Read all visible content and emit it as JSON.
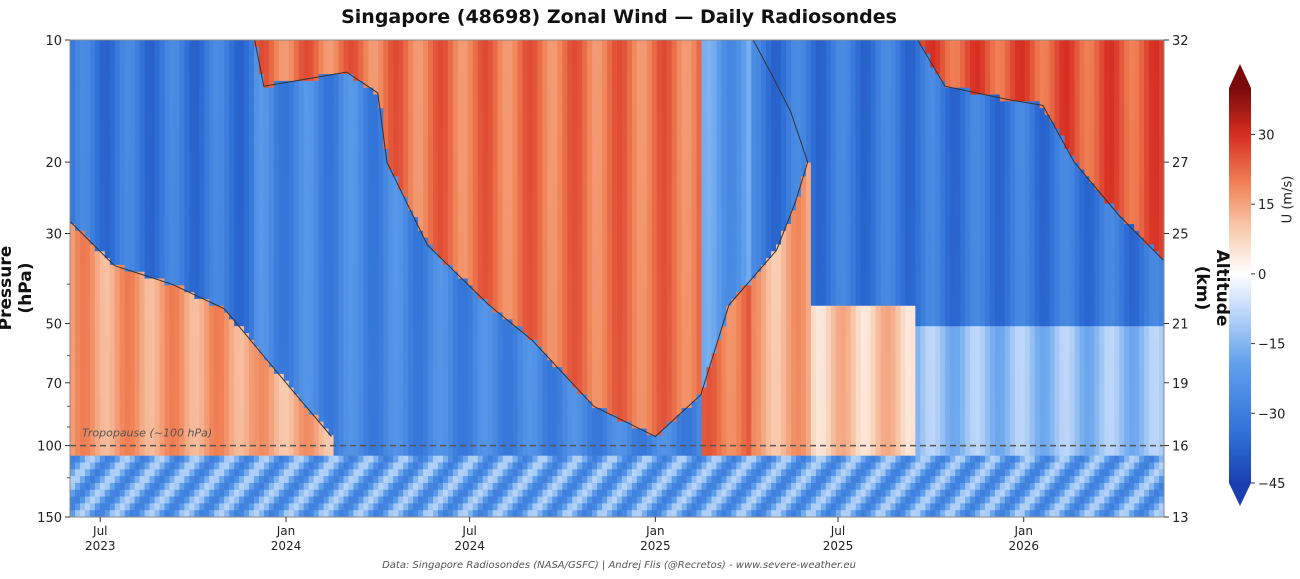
{
  "chart_data": {
    "type": "heatmap",
    "title": "Singapore (48698) Zonal Wind — Daily Radiosondes",
    "ylabel": "Pressure (hPa)",
    "y2label": "Altitude (km)",
    "colorbar_label": "U (m/s)",
    "credit": "Data: Singapore Radiosondes (NASA/GSFC) | Andrej Flis (@Recretos) - www.severe-weather.eu",
    "x_range": [
      "2023-06-01",
      "2026-05-20"
    ],
    "x_ticks": [
      {
        "date": "2023-07-01",
        "month": "Jul",
        "year": "2023"
      },
      {
        "date": "2024-01-01",
        "month": "Jan",
        "year": "2024"
      },
      {
        "date": "2024-07-01",
        "month": "Jul",
        "year": "2024"
      },
      {
        "date": "2025-01-01",
        "month": "Jan",
        "year": "2025"
      },
      {
        "date": "2025-07-01",
        "month": "Jul",
        "year": "2025"
      },
      {
        "date": "2026-01-01",
        "month": "Jan",
        "year": "2026"
      }
    ],
    "y_scale": "log",
    "y_range_hPa": [
      150,
      10
    ],
    "y_ticks_hPa": [
      10,
      20,
      30,
      50,
      70,
      100,
      150
    ],
    "y2_ticks_km": [
      {
        "p": 10,
        "km": "32"
      },
      {
        "p": 20,
        "km": "27"
      },
      {
        "p": 30,
        "km": "25"
      },
      {
        "p": 50,
        "km": "21"
      },
      {
        "p": 70,
        "km": "19"
      },
      {
        "p": 100,
        "km": "16"
      },
      {
        "p": 150,
        "km": "13"
      }
    ],
    "colorbar_range": [
      -45,
      40
    ],
    "colorbar_ticks": [
      30,
      15,
      0,
      -15,
      -30,
      -45
    ],
    "tropopause": {
      "p_hPa": 100,
      "label": "Tropopause (~100 hPa)"
    },
    "zero_wind_contour": [
      {
        "name": "westerly phase (upper, 2023-24)",
        "points": [
          [
            "2023-12-01",
            10
          ],
          [
            "2023-12-10",
            13
          ],
          [
            "2024-01-20",
            12.5
          ],
          [
            "2024-03-01",
            12
          ],
          [
            "2024-04-01",
            13.5
          ],
          [
            "2024-04-10",
            20
          ],
          [
            "2024-05-20",
            32
          ],
          [
            "2024-07-20",
            45
          ],
          [
            "2024-09-01",
            55
          ],
          [
            "2024-11-01",
            80
          ],
          [
            "2025-01-01",
            95
          ],
          [
            "2025-02-15",
            75
          ],
          [
            "2025-03-15",
            45
          ],
          [
            "2025-05-01",
            33
          ],
          [
            "2025-05-20",
            25
          ],
          [
            "2025-06-01",
            20
          ],
          [
            "2025-05-15",
            15
          ],
          [
            "2025-04-25",
            12
          ],
          [
            "2025-04-08",
            10
          ]
        ]
      },
      {
        "name": "westerly phase (lower, 2023)",
        "points": [
          [
            "2023-06-01",
            28
          ],
          [
            "2023-07-15",
            36
          ],
          [
            "2023-09-10",
            40
          ],
          [
            "2023-11-01",
            46
          ],
          [
            "2024-01-01",
            70
          ],
          [
            "2024-02-15",
            95
          ]
        ]
      },
      {
        "name": "westerly phase (upper, 2025-26)",
        "points": [
          [
            "2025-09-18",
            10
          ],
          [
            "2025-10-15",
            13
          ],
          [
            "2025-12-15",
            14
          ],
          [
            "2026-01-20",
            14.5
          ],
          [
            "2026-02-20",
            20
          ],
          [
            "2026-04-05",
            27
          ],
          [
            "2026-05-20",
            35
          ]
        ]
      }
    ],
    "wind_field": {
      "descriptor": "alternating QBO phases descending with time; values in m/s",
      "phases": [
        {
          "kind": "easterly",
          "u": -30,
          "upper_edge": [
            [
              "2023-06-01",
              10
            ],
            [
              "2023-12-01",
              10
            ]
          ],
          "lower_edge": [
            [
              "2023-06-01",
              28
            ],
            [
              "2024-01-01",
              70
            ]
          ]
        },
        {
          "kind": "westerly",
          "u": 20,
          "upper_edge": [
            [
              "2023-12-01",
              10
            ],
            [
              "2025-04-08",
              10
            ]
          ],
          "lower_edge": [
            [
              "2024-04-10",
              20
            ],
            [
              "2025-01-01",
              95
            ],
            [
              "2025-06-01",
              20
            ]
          ]
        },
        {
          "kind": "easterly",
          "u": -30,
          "upper_edge": [
            [
              "2025-04-08",
              10
            ],
            [
              "2025-09-18",
              10
            ]
          ],
          "lower_edge": [
            [
              "2025-06-01",
              20
            ],
            [
              "2026-05-20",
              40
            ]
          ]
        },
        {
          "kind": "westerly",
          "u": 25,
          "upper_edge": [
            [
              "2025-09-18",
              10
            ],
            [
              "2026-05-20",
              10
            ]
          ],
          "lower_edge": [
            [
              "2026-01-20",
              14.5
            ],
            [
              "2026-05-20",
              35
            ]
          ]
        }
      ],
      "lower_layer_u": -20
    }
  }
}
